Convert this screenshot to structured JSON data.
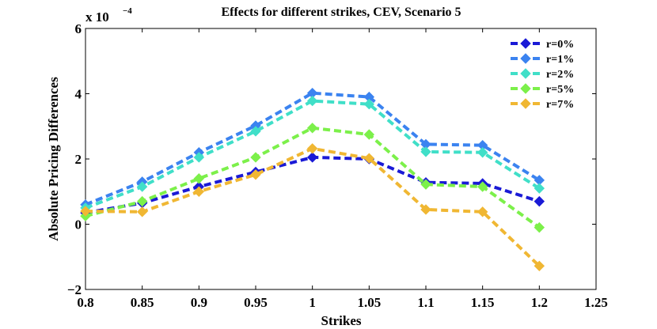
{
  "chart_data": {
    "type": "line",
    "title": "Effects for different strikes, CEV, Scenario 5",
    "xlabel": "Strikes",
    "ylabel": "Absolute Pricing Differences",
    "y_scale_label": "x 10",
    "y_scale_exponent": "−4",
    "xlim": [
      0.8,
      1.25
    ],
    "ylim": [
      -2,
      6
    ],
    "x_ticks": [
      "0.8",
      "0.85",
      "0.9",
      "0.95",
      "1",
      "1.05",
      "1.1",
      "1.15",
      "1.2",
      "1.25"
    ],
    "y_ticks": [
      "−2",
      "0",
      "2",
      "4",
      "6"
    ],
    "x": [
      0.8,
      0.85,
      0.9,
      0.95,
      1.0,
      1.05,
      1.1,
      1.15,
      1.2
    ],
    "legend_position": "top-right",
    "series": [
      {
        "name": "r=0%",
        "color": "#1a1ad6",
        "values": [
          0.35,
          0.65,
          1.15,
          1.6,
          2.05,
          2.0,
          1.28,
          1.25,
          0.7
        ]
      },
      {
        "name": "r=1%",
        "color": "#3b83f0",
        "values": [
          0.6,
          1.3,
          2.2,
          3.02,
          4.02,
          3.9,
          2.45,
          2.42,
          1.35
        ]
      },
      {
        "name": "r=2%",
        "color": "#40dfc8",
        "values": [
          0.5,
          1.15,
          2.05,
          2.85,
          3.78,
          3.68,
          2.22,
          2.2,
          1.1
        ]
      },
      {
        "name": "r=5%",
        "color": "#7cf04a",
        "values": [
          0.25,
          0.7,
          1.4,
          2.05,
          2.95,
          2.75,
          1.22,
          1.15,
          -0.1
        ]
      },
      {
        "name": "r=7%",
        "color": "#f0b733",
        "values": [
          0.4,
          0.38,
          1.0,
          1.52,
          2.32,
          2.02,
          0.45,
          0.38,
          -1.28
        ]
      }
    ]
  }
}
